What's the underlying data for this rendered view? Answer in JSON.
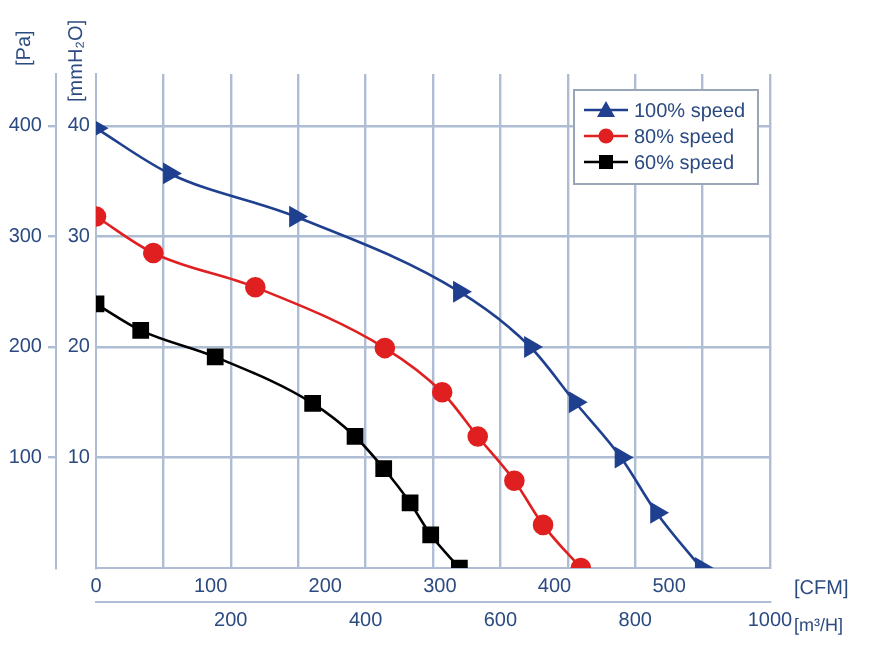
{
  "chart_data": {
    "type": "line",
    "xlabel": "[CFM]",
    "x2label": "[m³/H]",
    "ylabel": "[Pa]",
    "y2label": "[mmH₂O]",
    "xlim": [
      0,
      588
    ],
    "xticks": [
      0,
      100,
      200,
      300,
      400,
      500
    ],
    "x2lim": [
      0,
      1000
    ],
    "x2ticks": [
      {
        "value": 100,
        "label": null
      },
      200,
      {
        "value": 300,
        "label": null
      },
      400,
      {
        "value": 500,
        "label": null
      },
      600,
      {
        "value": 700,
        "label": null
      },
      800,
      {
        "value": 900,
        "label": null
      },
      1000
    ],
    "ylim": [
      0,
      447
    ],
    "yticks": [
      100,
      200,
      300,
      400
    ],
    "y2lim": [
      0,
      44.7
    ],
    "y2ticks": [
      10,
      20,
      30,
      40
    ],
    "grid": true,
    "legend": "top right",
    "series": [
      {
        "name": "100% speed",
        "color": "#1f3f8f",
        "marker": "triangle",
        "x": [
          0,
          64,
          174,
          317,
          379,
          418,
          458,
          489,
          528
        ],
        "values": [
          398,
          357,
          318,
          250,
          200,
          150,
          100,
          50,
          0
        ]
      },
      {
        "name": "80% speed",
        "color": "#e02020",
        "marker": "circle",
        "x": [
          0,
          50,
          139,
          252,
          302,
          333,
          365,
          390,
          423
        ],
        "values": [
          318,
          285,
          254,
          199,
          159,
          119,
          79,
          39,
          0
        ]
      },
      {
        "name": "60% speed",
        "color": "#000000",
        "marker": "square",
        "x": [
          0,
          39,
          104,
          189,
          226,
          251,
          274,
          292,
          317
        ],
        "values": [
          239,
          215,
          191,
          149,
          119,
          90,
          59,
          30,
          0
        ]
      }
    ]
  }
}
